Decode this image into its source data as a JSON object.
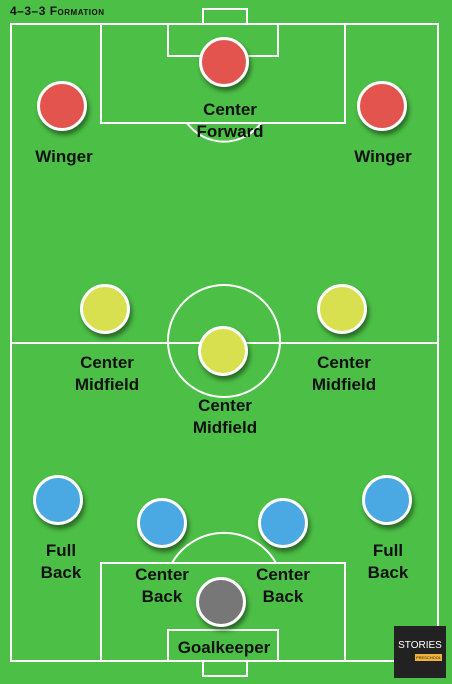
{
  "title": "4–3–3 Formation",
  "colors": {
    "pitch": "#4cbf46",
    "lines": "#ffffff",
    "forward": "#e3544e",
    "midfield": "#d8e04f",
    "defense": "#4aa8e2",
    "goalkeeper": "#777777"
  },
  "players": {
    "center_forward": {
      "label_line1": "Center",
      "label_line2": "Forward"
    },
    "left_winger": {
      "label": "Winger"
    },
    "right_winger": {
      "label": "Winger"
    },
    "left_center_midfield": {
      "label_line1": "Center",
      "label_line2": "Midfield"
    },
    "right_center_midfield": {
      "label_line1": "Center",
      "label_line2": "Midfield"
    },
    "central_midfield": {
      "label_line1": "Center",
      "label_line2": "Midfield"
    },
    "left_full_back": {
      "label_line1": "Full",
      "label_line2": "Back"
    },
    "right_full_back": {
      "label_line1": "Full",
      "label_line2": "Back"
    },
    "left_center_back": {
      "label_line1": "Center",
      "label_line2": "Back"
    },
    "right_center_back": {
      "label_line1": "Center",
      "label_line2": "Back"
    },
    "goalkeeper": {
      "label": "Goalkeeper"
    }
  },
  "logo": {
    "text": "STORIES",
    "subtext": "PRESCHOOL"
  }
}
